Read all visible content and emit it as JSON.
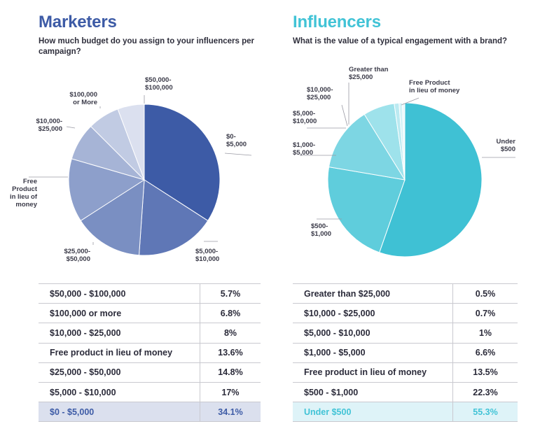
{
  "colors": {
    "marketers_title": "#3d5ba6",
    "influencers_title": "#41c3d6",
    "marketers_highlight_bg": "#dbe0ee",
    "influencers_highlight_bg": "#def3f8"
  },
  "marketers": {
    "title": "Marketers",
    "question": "How much budget do you assign to your influencers per campaign?",
    "table": [
      {
        "label": "$50,000 - $100,000",
        "value": "5.7%"
      },
      {
        "label": "$100,000 or more",
        "value": "6.8%"
      },
      {
        "label": "$10,000 - $25,000",
        "value": "8%"
      },
      {
        "label": "Free product in lieu of money",
        "value": "13.6%"
      },
      {
        "label": "$25,000 - $50,000",
        "value": "14.8%"
      },
      {
        "label": "$5,000 - $10,000",
        "value": "17%"
      },
      {
        "label": "$0 - $5,000",
        "value": "34.1%"
      }
    ]
  },
  "influencers": {
    "title": "Influencers",
    "question": "What is the value of a typical engagement with a brand?",
    "table": [
      {
        "label": "Greater than $25,000",
        "value": "0.5%"
      },
      {
        "label": "$10,000 - $25,000",
        "value": "0.7%"
      },
      {
        "label": "$5,000 - $10,000",
        "value": "1%"
      },
      {
        "label": "$1,000 - $5,000",
        "value": "6.6%"
      },
      {
        "label": "Free product in lieu of money",
        "value": "13.5%"
      },
      {
        "label": "$500 - $1,000",
        "value": "22.3%"
      },
      {
        "label": "Under $500",
        "value": "55.3%"
      }
    ]
  },
  "chart_data": [
    {
      "type": "pie",
      "title": "Marketers",
      "subtitle": "How much budget do you assign to your influencers per campaign?",
      "slices": [
        {
          "label": "$0-\n$5,000",
          "value": 34.1,
          "color": "#3d5ba6"
        },
        {
          "label": "$5,000-\n$10,000",
          "value": 17.0,
          "color": "#5f77b6"
        },
        {
          "label": "$25,000-\n$50,000",
          "value": 14.8,
          "color": "#7a8fc2"
        },
        {
          "label": "Free\nProduct\nin lieu of\nmoney",
          "value": 13.6,
          "color": "#8d9fcb"
        },
        {
          "label": "$10,000-\n$25,000",
          "value": 8.0,
          "color": "#a6b4d6"
        },
        {
          "label": "$100,000\nor More",
          "value": 6.8,
          "color": "#c1cbe3"
        },
        {
          "label": "$50,000-\n$100,000",
          "value": 5.7,
          "color": "#dbe0ef"
        }
      ]
    },
    {
      "type": "pie",
      "title": "Influencers",
      "subtitle": "What is the value of a typical engagement with a brand?",
      "slices": [
        {
          "label": "Under\n$500",
          "value": 55.3,
          "color": "#3fc1d4"
        },
        {
          "label": "$500-\n$1,000",
          "value": 22.3,
          "color": "#5fcddc"
        },
        {
          "label": "Free Product\nin lieu of money",
          "value": 13.5,
          "color": "#7dd6e3"
        },
        {
          "label": "$1,000-\n$5,000",
          "value": 6.6,
          "color": "#9ee2eb"
        },
        {
          "label": "$5,000-\n$10,000",
          "value": 1.0,
          "color": "#bbeaf1"
        },
        {
          "label": "$10,000-\n$25,000",
          "value": 0.7,
          "color": "#d4f2f6"
        },
        {
          "label": "Greater than\n$25,000",
          "value": 0.5,
          "color": "#e9f8fb"
        }
      ]
    }
  ]
}
